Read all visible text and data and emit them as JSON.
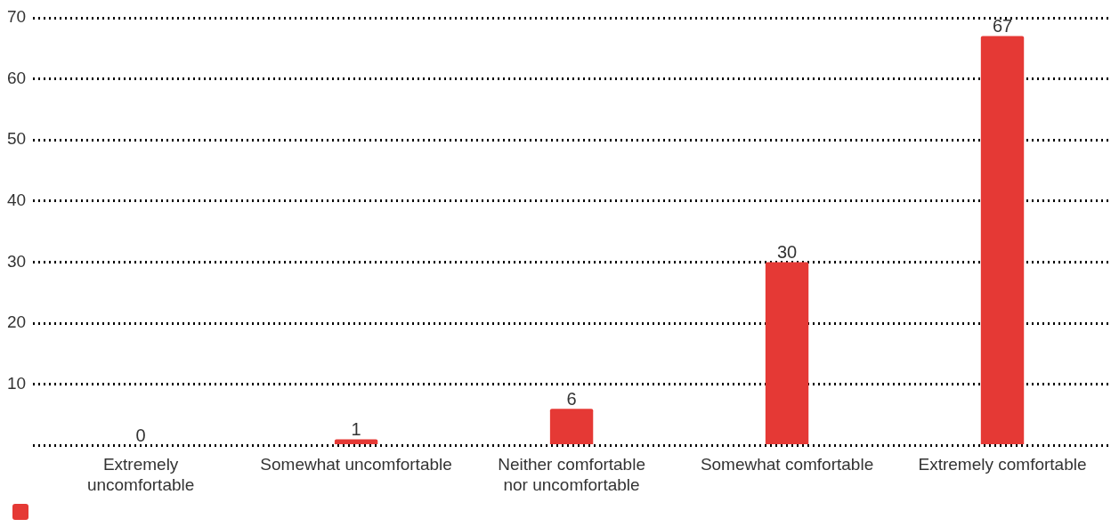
{
  "chart_data": {
    "type": "bar",
    "categories": [
      "Extremely uncomfortable",
      "Somewhat uncomfortable",
      "Neither comfortable nor uncomfortable",
      "Somewhat comfortable",
      "Extremely comfortable"
    ],
    "values": [
      0,
      1,
      6,
      30,
      67
    ],
    "color": "#e53935",
    "ylim": [
      0,
      70
    ],
    "yticks": [
      {
        "value": 0,
        "label": null
      },
      10,
      20,
      30,
      40,
      50,
      60,
      70
    ],
    "grid": "y",
    "data_labels": true
  }
}
